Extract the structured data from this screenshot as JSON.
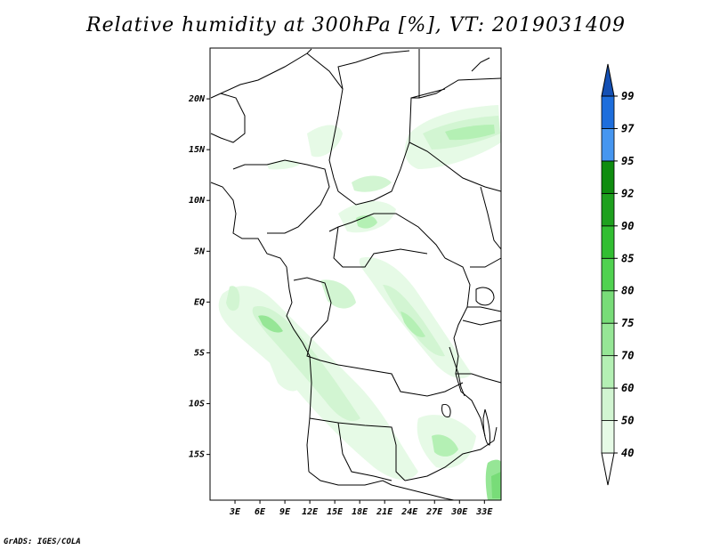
{
  "title": "Relative humidity at 300hPa [%], VT: 2019031409",
  "credit": "GrADS: IGES/COLA",
  "map": {
    "lat_labels": [
      "20N",
      "15N",
      "10N",
      "5N",
      "EQ",
      "5S",
      "10S",
      "15S"
    ],
    "lat_values": [
      20,
      15,
      10,
      5,
      0,
      -5,
      -10,
      -15
    ],
    "lon_labels": [
      "3E",
      "6E",
      "9E",
      "12E",
      "15E",
      "18E",
      "21E",
      "24E",
      "27E",
      "30E",
      "33E"
    ],
    "lon_values": [
      3,
      6,
      9,
      12,
      15,
      18,
      21,
      24,
      27,
      30,
      33
    ],
    "lon_range": [
      0,
      35
    ],
    "lat_range": [
      -19.5,
      25
    ]
  },
  "colorbar": {
    "levels": [
      "40",
      "50",
      "60",
      "70",
      "75",
      "80",
      "85",
      "90",
      "92",
      "95",
      "97",
      "99"
    ],
    "colors": [
      "#ffffff",
      "#e6fae6",
      "#d2f5d2",
      "#b4f0b4",
      "#96e696",
      "#78dc78",
      "#50d250",
      "#32be32",
      "#1ea01e",
      "#0f8c0f",
      "#4696f0",
      "#1e6edc",
      "#1450b4"
    ]
  }
}
